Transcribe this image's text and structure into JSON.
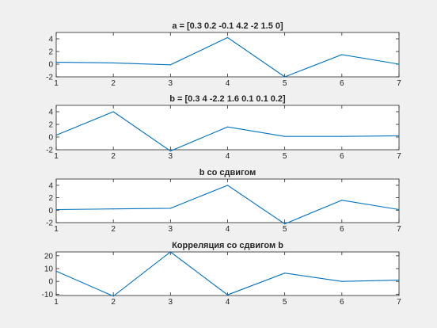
{
  "figure": {
    "background": "#f0f0f0",
    "axes_background": "#ffffff",
    "axis_color": "#262626",
    "line_color": "#0072bd"
  },
  "chart_data": [
    {
      "type": "line",
      "title": "a = [0.3 0.2 -0.1 4.2 -2 1.5 0]",
      "x": [
        1,
        2,
        3,
        4,
        5,
        6,
        7
      ],
      "series": [
        {
          "values": [
            0.3,
            0.2,
            -0.1,
            4.2,
            -2,
            1.5,
            0
          ]
        }
      ],
      "xlim": [
        1,
        7
      ],
      "ylim": [
        -2,
        5
      ],
      "xticks": [
        1,
        2,
        3,
        4,
        5,
        6,
        7
      ],
      "yticks": [
        -2,
        0,
        2,
        4
      ],
      "grid": false
    },
    {
      "type": "line",
      "title": "b = [0.3 4 -2.2 1.6 0.1 0.1 0.2]",
      "x": [
        1,
        2,
        3,
        4,
        5,
        6,
        7
      ],
      "series": [
        {
          "values": [
            0.3,
            4,
            -2.2,
            1.6,
            0.1,
            0.1,
            0.2
          ]
        }
      ],
      "xlim": [
        1,
        7
      ],
      "ylim": [
        -2,
        5
      ],
      "xticks": [
        1,
        2,
        3,
        4,
        5,
        6,
        7
      ],
      "yticks": [
        -2,
        0,
        2,
        4
      ],
      "grid": false
    },
    {
      "type": "line",
      "title": "b со сдвигом",
      "x": [
        1,
        2,
        3,
        4,
        5,
        6,
        7
      ],
      "series": [
        {
          "values": [
            0.1,
            0.2,
            0.3,
            4,
            -2.2,
            1.6,
            0.1
          ]
        }
      ],
      "xlim": [
        1,
        7
      ],
      "ylim": [
        -2,
        5
      ],
      "xticks": [
        1,
        2,
        3,
        4,
        5,
        6,
        7
      ],
      "yticks": [
        -2,
        0,
        2,
        4
      ],
      "grid": false
    },
    {
      "type": "line",
      "title": "Корреляция со сдвигом b",
      "x": [
        1,
        2,
        3,
        4,
        5,
        6,
        7
      ],
      "series": [
        {
          "values": [
            8,
            -11.5,
            23,
            -10.5,
            6.5,
            0,
            1
          ]
        }
      ],
      "xlim": [
        1,
        7
      ],
      "ylim": [
        -11,
        23
      ],
      "xticks": [
        1,
        2,
        3,
        4,
        5,
        6,
        7
      ],
      "yticks": [
        -10,
        0,
        10,
        20
      ],
      "grid": false
    }
  ]
}
